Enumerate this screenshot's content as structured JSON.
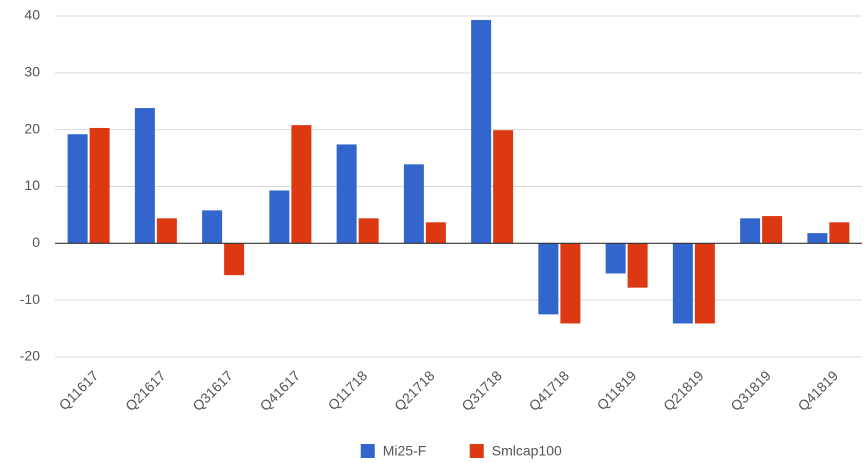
{
  "chart_data": {
    "type": "bar",
    "categories": [
      "Q11617",
      "Q21617",
      "Q31617",
      "Q41617",
      "Q11718",
      "Q21718",
      "Q31718",
      "Q41718",
      "Q11819",
      "Q21819",
      "Q31819",
      "Q41819"
    ],
    "series": [
      {
        "name": "Mi25-F",
        "color": "#3366cc",
        "values": [
          19.2,
          23.8,
          5.8,
          9.3,
          17.4,
          13.9,
          39.3,
          -12.5,
          -5.3,
          -14.1,
          4.4,
          1.8
        ]
      },
      {
        "name": "Smlcap100",
        "color": "#dc3912",
        "values": [
          20.3,
          4.4,
          -5.6,
          20.8,
          4.4,
          3.7,
          19.9,
          -14.1,
          -7.8,
          -14.1,
          4.8,
          3.7
        ]
      }
    ],
    "ylim": [
      -20,
      40
    ],
    "yticks": [
      -20,
      -10,
      0,
      10,
      20,
      30,
      40
    ],
    "grid": true,
    "legend": "bottom"
  }
}
